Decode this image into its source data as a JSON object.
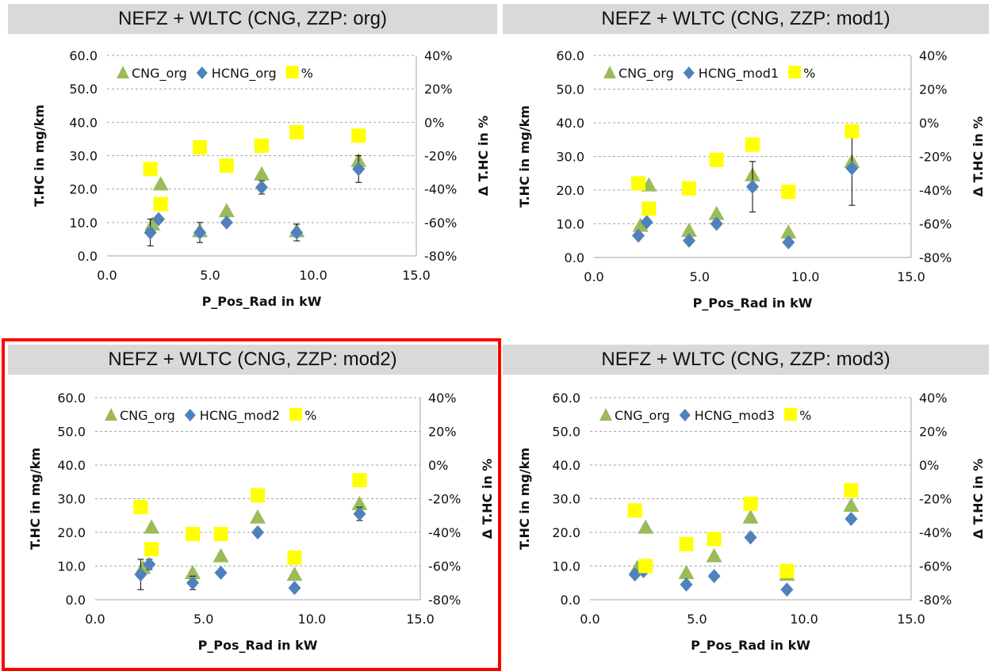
{
  "colors": {
    "cng": "#9bbb59",
    "hcng": "#4f81bd",
    "pct": "#ffff00",
    "header_bg": "#d9d9d9",
    "highlight": "#ff0000",
    "error_bar": "#000000"
  },
  "chart_data": [
    {
      "type": "scatter",
      "title": "NEFZ + WLTC (CNG, ZZP: org)",
      "xlabel": "P_Pos_Rad in kW",
      "ylabel": "T.HC in mg/km",
      "y2label": "Δ T.HC in %",
      "xlim": [
        0,
        15
      ],
      "ylim": [
        0,
        60
      ],
      "y2lim": [
        -80,
        40
      ],
      "x_ticks": [
        "0.0",
        "5.0",
        "10.0",
        "15.0"
      ],
      "y_ticks": [
        "60.0",
        "50.0",
        "40.0",
        "30.0",
        "20.0",
        "10.0",
        "0.0"
      ],
      "y2_ticks": [
        "40%",
        "20%",
        "0%",
        "-20%",
        "-40%",
        "-60%",
        "-80%"
      ],
      "grid": "horizontal dashed",
      "legend": "top-left",
      "series": [
        {
          "name": "CNG_org",
          "axis": "left",
          "marker": "triangle",
          "points": [
            [
              2.2,
              9.5
            ],
            [
              2.6,
              21.5
            ],
            [
              4.5,
              7.5
            ],
            [
              5.8,
              13.5
            ],
            [
              7.5,
              24.5
            ],
            [
              9.2,
              7.5
            ],
            [
              12.2,
              28.5
            ]
          ]
        },
        {
          "name": "HCNG_org",
          "axis": "left",
          "marker": "diamond",
          "points": [
            [
              2.1,
              7
            ],
            [
              2.5,
              11
            ],
            [
              4.5,
              7
            ],
            [
              5.8,
              10
            ],
            [
              7.5,
              20.5
            ],
            [
              9.2,
              7
            ],
            [
              12.2,
              26
            ]
          ],
          "error": [
            4,
            1,
            3,
            0,
            2,
            2.5,
            4
          ]
        },
        {
          "name": "%",
          "axis": "right",
          "marker": "square",
          "points": [
            [
              2.1,
              -28
            ],
            [
              2.6,
              -49
            ],
            [
              4.5,
              -15
            ],
            [
              5.8,
              -26
            ],
            [
              7.5,
              -14
            ],
            [
              9.2,
              -6
            ],
            [
              12.2,
              -8
            ]
          ]
        }
      ]
    },
    {
      "type": "scatter",
      "title": "NEFZ + WLTC (CNG, ZZP: mod1)",
      "xlabel": "P_Pos_Rad in kW",
      "ylabel": "T.HC in mg/km",
      "y2label": "Δ T.HC in %",
      "xlim": [
        0,
        15
      ],
      "ylim": [
        0,
        60
      ],
      "y2lim": [
        -80,
        40
      ],
      "x_ticks": [
        "0.0",
        "5.0",
        "10.0",
        "15.0"
      ],
      "y_ticks": [
        "60.0",
        "50.0",
        "40.0",
        "30.0",
        "20.0",
        "10.0",
        "0.0"
      ],
      "y2_ticks": [
        "40%",
        "20%",
        "0%",
        "-20%",
        "-40%",
        "-60%",
        "-80%"
      ],
      "grid": "horizontal dashed",
      "legend": "top-left",
      "series": [
        {
          "name": "CNG_org",
          "axis": "left",
          "marker": "triangle",
          "points": [
            [
              2.2,
              9.5
            ],
            [
              2.6,
              21.5
            ],
            [
              4.5,
              8
            ],
            [
              5.8,
              13
            ],
            [
              7.5,
              24.5
            ],
            [
              9.2,
              7.5
            ],
            [
              12.2,
              28.5
            ]
          ]
        },
        {
          "name": "HCNG_mod1",
          "axis": "left",
          "marker": "diamond",
          "points": [
            [
              2.1,
              6.5
            ],
            [
              2.5,
              10.5
            ],
            [
              4.5,
              5
            ],
            [
              5.8,
              10
            ],
            [
              7.5,
              21
            ],
            [
              9.2,
              4.5
            ],
            [
              12.2,
              26.5
            ]
          ],
          "error": [
            0,
            0,
            0,
            0,
            7.5,
            0,
            11
          ]
        },
        {
          "name": "%",
          "axis": "right",
          "marker": "square",
          "points": [
            [
              2.1,
              -36
            ],
            [
              2.6,
              -51
            ],
            [
              4.5,
              -39
            ],
            [
              5.8,
              -22
            ],
            [
              7.5,
              -13
            ],
            [
              9.2,
              -41
            ],
            [
              12.2,
              -5
            ]
          ]
        }
      ]
    },
    {
      "type": "scatter",
      "title": "NEFZ + WLTC (CNG, ZZP: mod2)",
      "xlabel": "P_Pos_Rad in kW",
      "ylabel": "T.HC in mg/km",
      "y2label": "Δ T.HC in %",
      "xlim": [
        0,
        15
      ],
      "ylim": [
        0,
        60
      ],
      "y2lim": [
        -80,
        40
      ],
      "x_ticks": [
        "0.0",
        "5.0",
        "10.0",
        "15.0"
      ],
      "y_ticks": [
        "60.0",
        "50.0",
        "40.0",
        "30.0",
        "20.0",
        "10.0",
        "0.0"
      ],
      "y2_ticks": [
        "40%",
        "20%",
        "0%",
        "-20%",
        "-40%",
        "-60%",
        "-80%"
      ],
      "grid": "horizontal dashed",
      "legend": "top-left",
      "series": [
        {
          "name": "CNG_org",
          "axis": "left",
          "marker": "triangle",
          "points": [
            [
              2.2,
              9.5
            ],
            [
              2.6,
              21.5
            ],
            [
              4.5,
              8
            ],
            [
              5.8,
              13
            ],
            [
              7.5,
              24.5
            ],
            [
              9.2,
              7.5
            ],
            [
              12.2,
              28.5
            ]
          ]
        },
        {
          "name": "HCNG_mod2",
          "axis": "left",
          "marker": "diamond",
          "points": [
            [
              2.1,
              7.5
            ],
            [
              2.5,
              10.5
            ],
            [
              4.5,
              5
            ],
            [
              5.8,
              8
            ],
            [
              7.5,
              20
            ],
            [
              9.2,
              3.5
            ],
            [
              12.2,
              25.5
            ]
          ],
          "error": [
            4.5,
            1.5,
            2,
            0,
            1,
            0,
            2
          ]
        },
        {
          "name": "%",
          "axis": "right",
          "marker": "square",
          "points": [
            [
              2.1,
              -25
            ],
            [
              2.6,
              -50
            ],
            [
              4.5,
              -41
            ],
            [
              5.8,
              -41
            ],
            [
              7.5,
              -18
            ],
            [
              9.2,
              -55
            ],
            [
              12.2,
              -9
            ]
          ]
        }
      ]
    },
    {
      "type": "scatter",
      "title": "NEFZ + WLTC (CNG, ZZP: mod3)",
      "xlabel": "P_Pos_Rad in kW",
      "ylabel": "T.HC in mg/km",
      "y2label": "Δ T.HC in %",
      "xlim": [
        0,
        15
      ],
      "ylim": [
        0,
        60
      ],
      "y2lim": [
        -80,
        40
      ],
      "x_ticks": [
        "0.0",
        "5.0",
        "10.0",
        "15.0"
      ],
      "y_ticks": [
        "60.0",
        "50.0",
        "40.0",
        "30.0",
        "20.0",
        "10.0",
        "0.0"
      ],
      "y2_ticks": [
        "40%",
        "20%",
        "0%",
        "-20%",
        "-40%",
        "-60%",
        "-80%"
      ],
      "grid": "horizontal dashed",
      "legend": "top-left",
      "series": [
        {
          "name": "CNG_org",
          "axis": "left",
          "marker": "triangle",
          "points": [
            [
              2.2,
              9.5
            ],
            [
              2.6,
              21.5
            ],
            [
              4.5,
              8
            ],
            [
              5.8,
              13
            ],
            [
              7.5,
              24.5
            ],
            [
              9.2,
              7.5
            ],
            [
              12.2,
              28
            ]
          ]
        },
        {
          "name": "HCNG_mod3",
          "axis": "left",
          "marker": "diamond",
          "points": [
            [
              2.1,
              7.5
            ],
            [
              2.5,
              8.5
            ],
            [
              4.5,
              4.5
            ],
            [
              5.8,
              7
            ],
            [
              7.5,
              18.5
            ],
            [
              9.2,
              3
            ],
            [
              12.2,
              24
            ]
          ],
          "error": [
            0,
            0,
            0,
            0,
            0,
            0,
            0
          ]
        },
        {
          "name": "%",
          "axis": "right",
          "marker": "square",
          "points": [
            [
              2.1,
              -27
            ],
            [
              2.6,
              -60
            ],
            [
              4.5,
              -47
            ],
            [
              5.8,
              -44
            ],
            [
              7.5,
              -23
            ],
            [
              9.2,
              -63
            ],
            [
              12.2,
              -15
            ]
          ]
        }
      ]
    }
  ]
}
